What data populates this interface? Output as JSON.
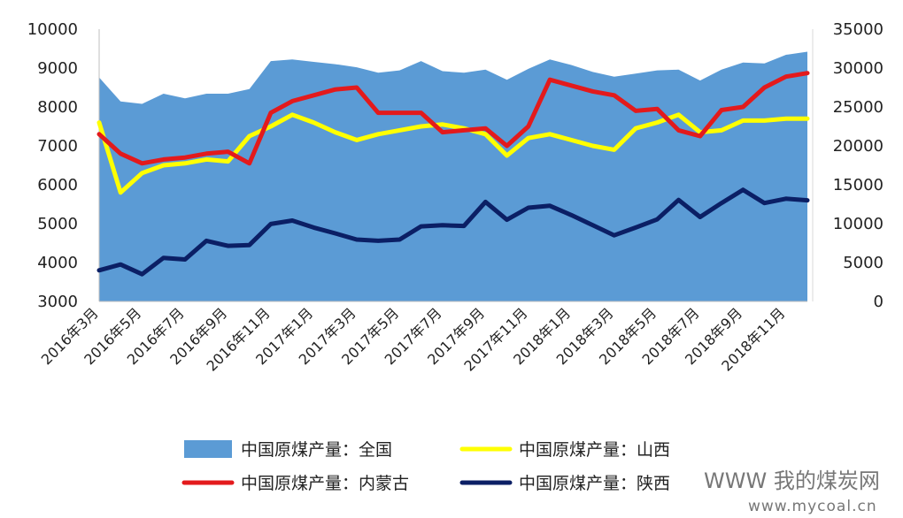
{
  "chart_data": {
    "type": "area",
    "categories": [
      "2016年3月",
      "2016年4月",
      "2016年5月",
      "2016年6月",
      "2016年7月",
      "2016年8月",
      "2016年9月",
      "2016年10月",
      "2016年11月",
      "2016年12月",
      "2017年1月",
      "2017年2月",
      "2017年3月",
      "2017年4月",
      "2017年5月",
      "2017年6月",
      "2017年7月",
      "2017年8月",
      "2017年9月",
      "2017年10月",
      "2017年11月",
      "2017年12月",
      "2018年1月",
      "2018年2月",
      "2018年3月",
      "2018年4月",
      "2018年5月",
      "2018年6月",
      "2018年7月",
      "2018年8月",
      "2018年9月",
      "2018年10月",
      "2018年11月",
      "2018年12月"
    ],
    "tick_labels": [
      "2016年3月",
      "2016年5月",
      "2016年7月",
      "2016年9月",
      "2016年11月",
      "2017年1月",
      "2017年3月",
      "2017年5月",
      "2017年7月",
      "2017年9月",
      "2017年11月",
      "2018年1月",
      "2018年3月",
      "2018年5月",
      "2018年7月",
      "2018年9月",
      "2018年11月"
    ],
    "y_left": {
      "min": 3000,
      "max": 10000,
      "ticks": [
        3000,
        4000,
        5000,
        6000,
        7000,
        8000,
        9000,
        10000
      ]
    },
    "y_right": {
      "min": 0,
      "max": 35000,
      "ticks": [
        0,
        5000,
        10000,
        15000,
        20000,
        25000,
        30000,
        35000
      ]
    },
    "grid": false,
    "legend_position": "bottom",
    "series": [
      {
        "name": "中国原煤产量：全国",
        "type": "area",
        "axis": "right",
        "color": "#5b9bd5",
        "values": [
          28800,
          25700,
          25400,
          26700,
          26100,
          26700,
          26700,
          27300,
          30900,
          31100,
          30800,
          30500,
          30100,
          29400,
          29700,
          30900,
          29600,
          29400,
          29800,
          28500,
          29900,
          31100,
          30400,
          29500,
          28900,
          29300,
          29700,
          29800,
          28400,
          29800,
          30700,
          30600,
          31700,
          32100
        ]
      },
      {
        "name": "中国原煤产量：山西",
        "type": "line",
        "axis": "left",
        "color": "#ffff00",
        "values": [
          7600,
          5800,
          6300,
          6500,
          6550,
          6650,
          6600,
          7250,
          7500,
          7800,
          7600,
          7350,
          7150,
          7300,
          7400,
          7500,
          7550,
          7450,
          7300,
          6750,
          7200,
          7300,
          7150,
          7000,
          6900,
          7450,
          7600,
          7800,
          7350,
          7400,
          7650,
          7650,
          7700,
          7700
        ]
      },
      {
        "name": "中国原煤产量：内蒙古",
        "type": "line",
        "axis": "left",
        "color": "#e31a1c",
        "values": [
          7300,
          6800,
          6550,
          6650,
          6700,
          6800,
          6850,
          6550,
          7850,
          8150,
          8300,
          8450,
          8500,
          7850,
          7850,
          7850,
          7350,
          7400,
          7450,
          7000,
          7500,
          8700,
          8550,
          8400,
          8300,
          7900,
          7950,
          7400,
          7250,
          7920,
          8000,
          8500,
          8780,
          8870
        ]
      },
      {
        "name": "中国原煤产量：陕西",
        "type": "line",
        "axis": "left",
        "color": "#0b1f65",
        "values": [
          3800,
          3950,
          3700,
          4120,
          4080,
          4560,
          4430,
          4450,
          4990,
          5080,
          4900,
          4750,
          4590,
          4560,
          4590,
          4930,
          4960,
          4940,
          5560,
          5100,
          5410,
          5460,
          5220,
          4960,
          4700,
          4900,
          5110,
          5610,
          5170,
          5530,
          5870,
          5530,
          5640,
          5600
        ]
      }
    ]
  },
  "watermark": {
    "text": "WWW 我的煤炭网",
    "url": "www.mycoal.cn"
  }
}
